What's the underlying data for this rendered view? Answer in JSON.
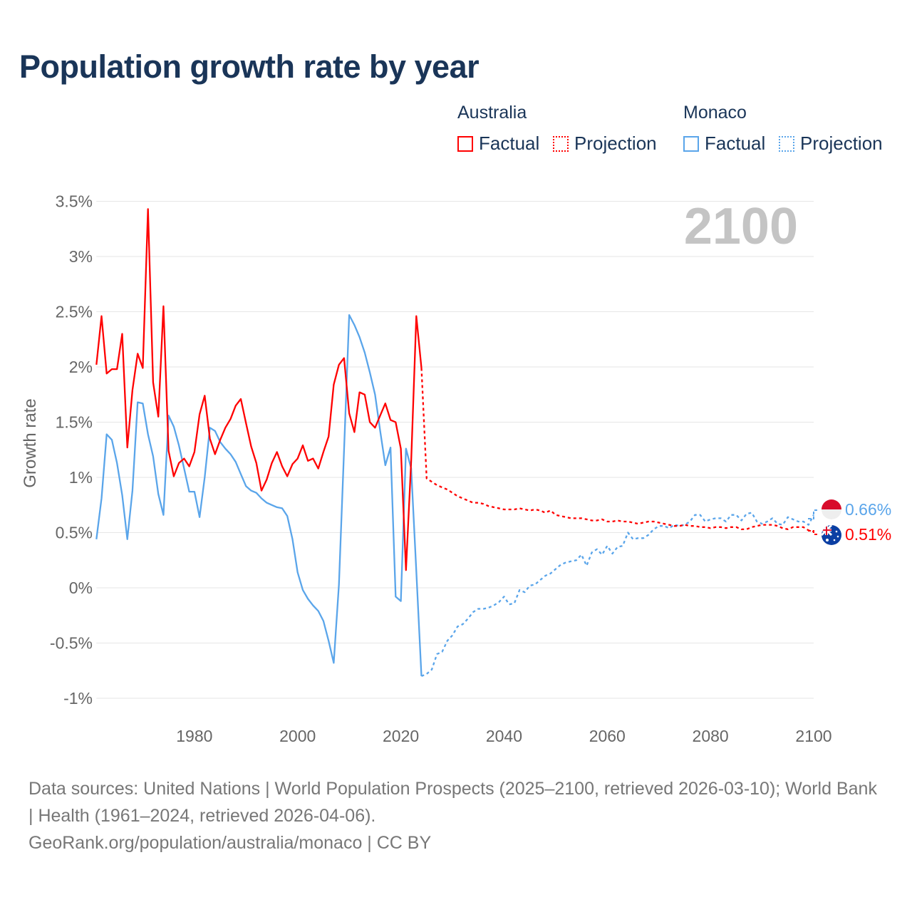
{
  "title": "Population growth rate by year",
  "legend": {
    "groups": [
      {
        "name": "Australia",
        "factual_label": "Factual",
        "projection_label": "Projection",
        "color": "#ff0000"
      },
      {
        "name": "Monaco",
        "factual_label": "Factual",
        "projection_label": "Projection",
        "color": "#5aa5ea"
      }
    ]
  },
  "year_display": "2100",
  "end_labels": {
    "monaco": "0.66%",
    "australia": "0.51%"
  },
  "footer": {
    "sources": "Data sources: United Nations | World Population Prospects (2025–2100, retrieved 2026-03-10); World Bank | Health (1961–2024, retrieved 2026-04-06).",
    "credit": "GeoRank.org/population/australia/monaco | CC BY"
  },
  "chart_data": {
    "type": "line",
    "title": "Population growth rate by year",
    "xlabel": "",
    "ylabel": "Growth rate",
    "xlim": [
      1961,
      2100
    ],
    "ylim": [
      -1,
      3.5
    ],
    "x_ticks": [
      "1980",
      "2000",
      "2020",
      "2040",
      "2060",
      "2080",
      "2100"
    ],
    "y_ticks": [
      "-1%",
      "-0.5%",
      "0%",
      "0.5%",
      "1%",
      "1.5%",
      "2%",
      "2.5%",
      "3%",
      "3.5%"
    ],
    "grid": true,
    "legend_position": "top-right",
    "series": [
      {
        "name": "Australia Factual",
        "color": "#ff0000",
        "style": "solid",
        "start_year": 1961,
        "values": [
          2.02,
          2.46,
          1.94,
          1.98,
          1.98,
          2.3,
          1.27,
          1.79,
          2.12,
          1.99,
          3.43,
          1.86,
          1.55,
          2.55,
          1.24,
          1.01,
          1.13,
          1.17,
          1.1,
          1.23,
          1.57,
          1.74,
          1.35,
          1.21,
          1.34,
          1.45,
          1.53,
          1.65,
          1.71,
          1.49,
          1.28,
          1.13,
          0.88,
          0.98,
          1.13,
          1.23,
          1.1,
          1.01,
          1.12,
          1.17,
          1.29,
          1.15,
          1.17,
          1.08,
          1.23,
          1.37,
          1.84,
          2.02,
          2.08,
          1.58,
          1.41,
          1.77,
          1.75,
          1.5,
          1.45,
          1.56,
          1.67,
          1.52,
          1.5,
          1.26,
          0.16,
          1.15,
          2.46,
          1.99
        ]
      },
      {
        "name": "Australia Projection",
        "color": "#ff0000",
        "style": "dotted",
        "start_year": 2025,
        "values": [
          0.99,
          0.96,
          0.93,
          0.91,
          0.89,
          0.86,
          0.83,
          0.81,
          0.79,
          0.77,
          0.77,
          0.76,
          0.74,
          0.73,
          0.72,
          0.71,
          0.71,
          0.71,
          0.72,
          0.71,
          0.7,
          0.71,
          0.7,
          0.68,
          0.7,
          0.66,
          0.65,
          0.64,
          0.63,
          0.63,
          0.63,
          0.62,
          0.61,
          0.61,
          0.62,
          0.6,
          0.6,
          0.61,
          0.6,
          0.6,
          0.59,
          0.58,
          0.59,
          0.6,
          0.6,
          0.59,
          0.58,
          0.57,
          0.56,
          0.56,
          0.57,
          0.56,
          0.56,
          0.55,
          0.55,
          0.54,
          0.55,
          0.55,
          0.54,
          0.55,
          0.55,
          0.53,
          0.53,
          0.55,
          0.56,
          0.57,
          0.57,
          0.57,
          0.56,
          0.54,
          0.53,
          0.55,
          0.55,
          0.55,
          0.52,
          0.51
        ]
      },
      {
        "name": "Monaco Factual",
        "color": "#5aa5ea",
        "style": "solid",
        "start_year": 1961,
        "values": [
          0.44,
          0.81,
          1.39,
          1.34,
          1.13,
          0.84,
          0.44,
          0.88,
          1.68,
          1.67,
          1.39,
          1.19,
          0.85,
          0.66,
          1.56,
          1.46,
          1.29,
          1.08,
          0.87,
          0.87,
          0.64,
          1.0,
          1.45,
          1.42,
          1.32,
          1.26,
          1.21,
          1.14,
          1.03,
          0.92,
          0.88,
          0.86,
          0.81,
          0.77,
          0.75,
          0.73,
          0.72,
          0.65,
          0.44,
          0.14,
          -0.02,
          -0.1,
          -0.16,
          -0.21,
          -0.3,
          -0.48,
          -0.68,
          0.03,
          1.25,
          2.47,
          2.38,
          2.27,
          2.13,
          1.95,
          1.75,
          1.42,
          1.11,
          1.27,
          -0.08,
          -0.12,
          1.26,
          1.08,
          0.15,
          -0.8
        ]
      },
      {
        "name": "Monaco Projection",
        "color": "#5aa5ea",
        "style": "dotted",
        "start_year": 2025,
        "values": [
          -0.78,
          -0.74,
          -0.6,
          -0.58,
          -0.48,
          -0.43,
          -0.35,
          -0.33,
          -0.28,
          -0.22,
          -0.19,
          -0.19,
          -0.18,
          -0.16,
          -0.13,
          -0.08,
          -0.15,
          -0.14,
          -0.02,
          -0.04,
          0.02,
          0.03,
          0.07,
          0.11,
          0.13,
          0.17,
          0.21,
          0.23,
          0.24,
          0.25,
          0.3,
          0.2,
          0.32,
          0.35,
          0.3,
          0.38,
          0.31,
          0.37,
          0.38,
          0.5,
          0.44,
          0.45,
          0.45,
          0.48,
          0.53,
          0.56,
          0.56,
          0.54,
          0.57,
          0.56,
          0.57,
          0.6,
          0.66,
          0.66,
          0.6,
          0.62,
          0.63,
          0.63,
          0.6,
          0.66,
          0.66,
          0.61,
          0.67,
          0.68,
          0.6,
          0.58,
          0.6,
          0.63,
          0.58,
          0.57,
          0.64,
          0.62,
          0.6,
          0.6,
          0.57,
          0.66
        ]
      }
    ]
  }
}
